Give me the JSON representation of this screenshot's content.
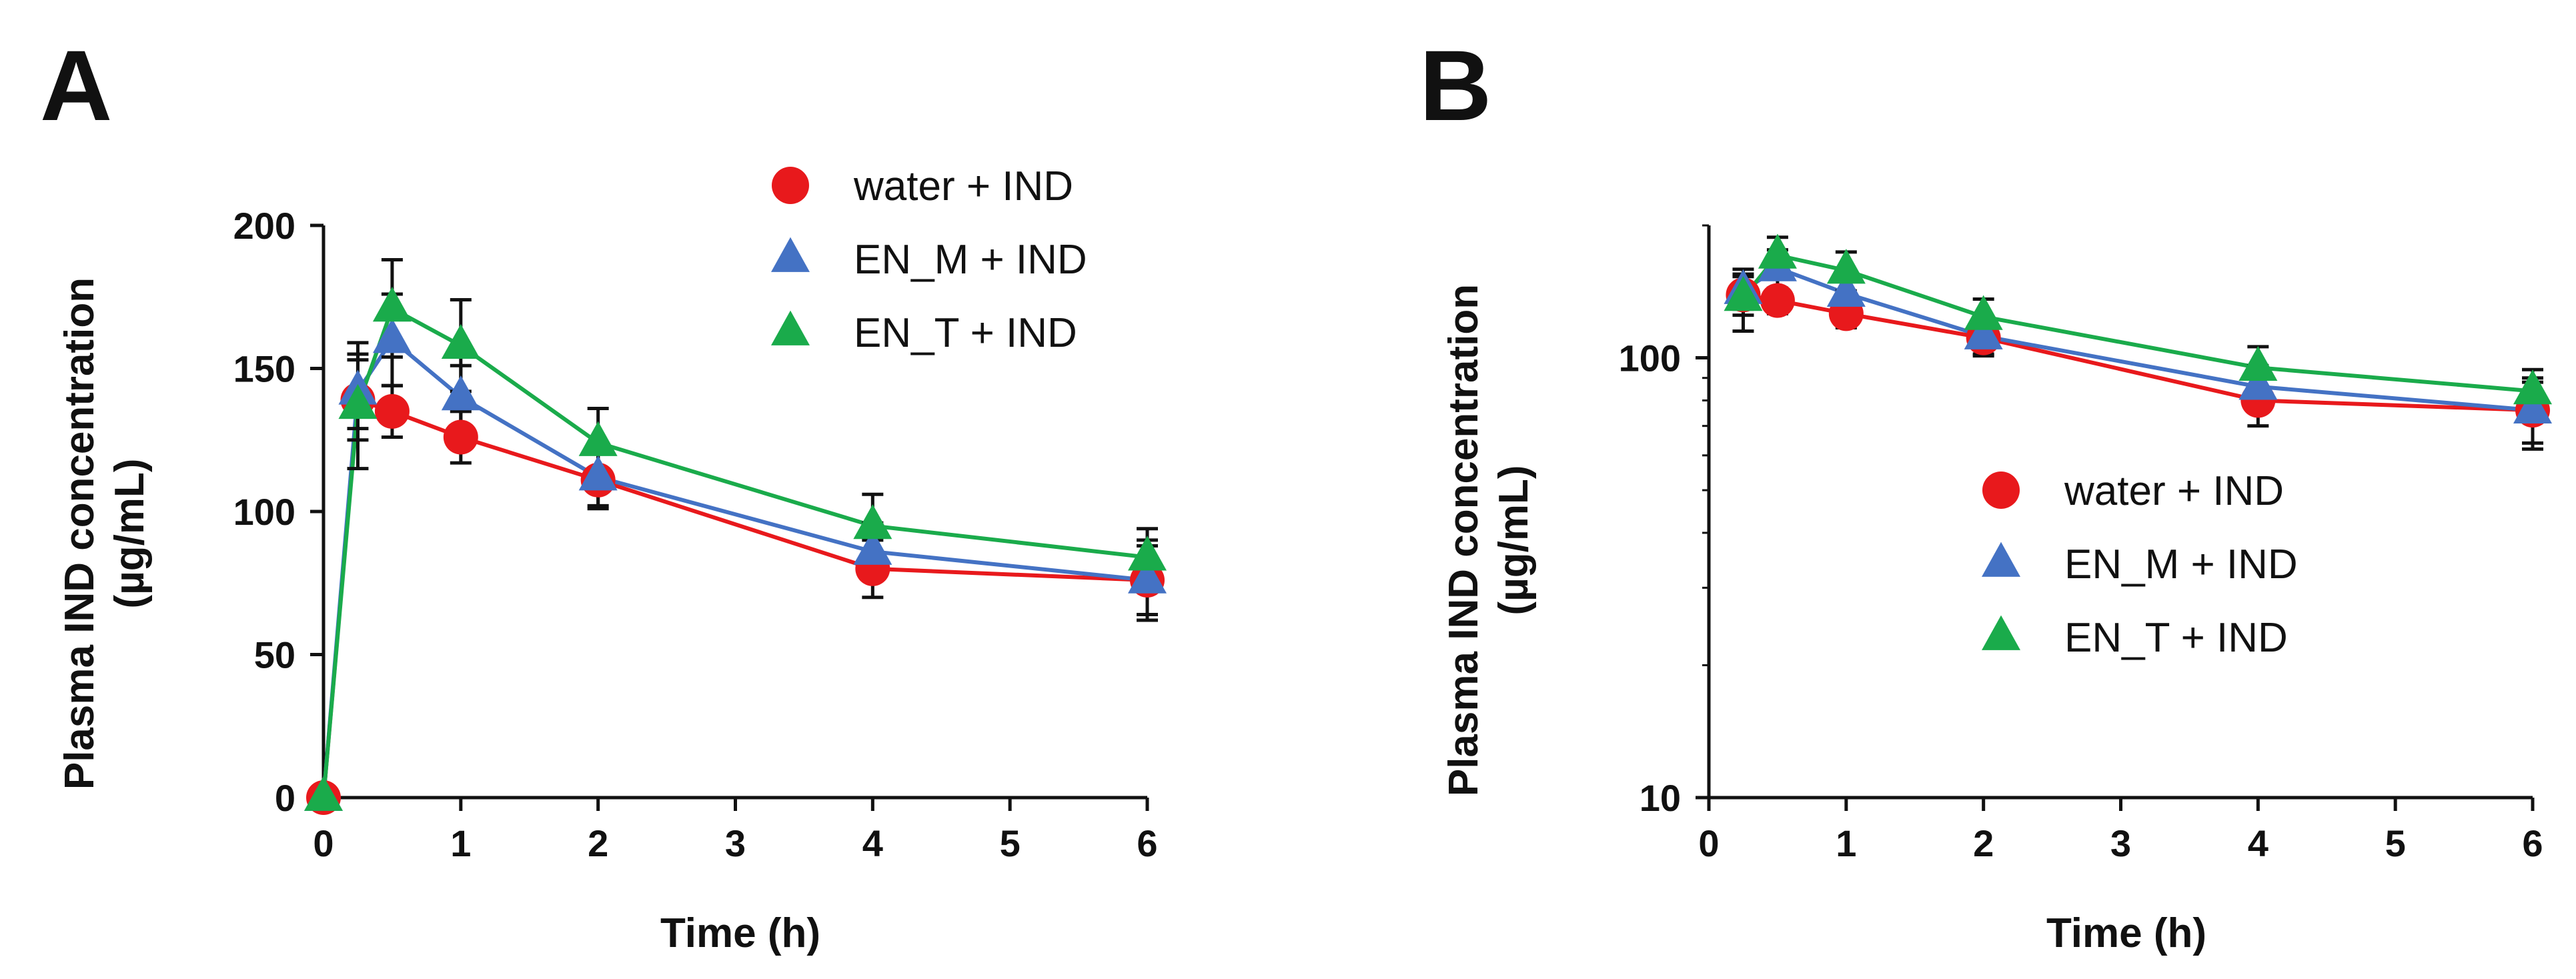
{
  "chart_data": [
    {
      "panel_label": "A",
      "type": "line",
      "yscale": "linear",
      "xlabel": "Time (h)",
      "ylabel": "Plasma IND concentration",
      "ylabel_unit": "(µg/mL)",
      "xlim": [
        0,
        6
      ],
      "ylim": [
        0,
        200
      ],
      "xticks": [
        0,
        1,
        2,
        3,
        4,
        5,
        6
      ],
      "yticks": [
        0,
        50,
        100,
        150,
        200
      ],
      "legend": [
        "water + IND",
        "EN_M + IND",
        "EN_T + IND"
      ],
      "legend_position": "top-right",
      "series": [
        {
          "name": "water + IND",
          "marker": "circle",
          "color": "#e8191c",
          "x": [
            0,
            0.25,
            0.5,
            1,
            2,
            4,
            6
          ],
          "y": [
            0,
            139,
            135,
            126,
            111,
            80,
            76
          ],
          "err": [
            0,
            14,
            9,
            9,
            10,
            10,
            12
          ]
        },
        {
          "name": "EN_M + IND",
          "marker": "triangle",
          "color": "#4472c4",
          "x": [
            0,
            0.25,
            0.5,
            1,
            2,
            4,
            6
          ],
          "y": [
            0,
            142,
            160,
            140,
            112,
            86,
            76
          ],
          "err": [
            0,
            13,
            16,
            11,
            10,
            10,
            14
          ]
        },
        {
          "name": "EN_T + IND",
          "marker": "triangle",
          "color": "#1aab4b",
          "x": [
            0,
            0.25,
            0.5,
            1,
            2,
            4,
            6
          ],
          "y": [
            0,
            137,
            171,
            158,
            124,
            95,
            84
          ],
          "err": [
            0,
            22,
            17,
            16,
            12,
            11,
            10
          ]
        }
      ]
    },
    {
      "panel_label": "B",
      "type": "line",
      "yscale": "log",
      "xlabel": "Time (h)",
      "ylabel": "Plasma IND concentration",
      "ylabel_unit": "(µg/mL)",
      "xlim": [
        0,
        6
      ],
      "ylim": [
        10,
        200
      ],
      "xticks": [
        0,
        1,
        2,
        3,
        4,
        5,
        6
      ],
      "yticks": [
        10,
        100
      ],
      "legend": [
        "water + IND",
        "EN_M + IND",
        "EN_T + IND"
      ],
      "legend_position": "center-right",
      "series": [
        {
          "name": "water + IND",
          "marker": "circle",
          "color": "#e8191c",
          "x": [
            0.25,
            0.5,
            1,
            2,
            4,
            6
          ],
          "y": [
            139,
            135,
            126,
            111,
            80,
            76
          ],
          "err": [
            14,
            9,
            9,
            10,
            10,
            12
          ]
        },
        {
          "name": "EN_M + IND",
          "marker": "triangle",
          "color": "#4472c4",
          "x": [
            0.25,
            0.5,
            1,
            2,
            4,
            6
          ],
          "y": [
            142,
            160,
            140,
            112,
            86,
            76
          ],
          "err": [
            13,
            16,
            11,
            10,
            10,
            14
          ]
        },
        {
          "name": "EN_T + IND",
          "marker": "triangle",
          "color": "#1aab4b",
          "x": [
            0.25,
            0.5,
            1,
            2,
            4,
            6
          ],
          "y": [
            137,
            171,
            158,
            124,
            95,
            84
          ],
          "err": [
            22,
            17,
            16,
            12,
            11,
            10
          ]
        }
      ]
    }
  ]
}
